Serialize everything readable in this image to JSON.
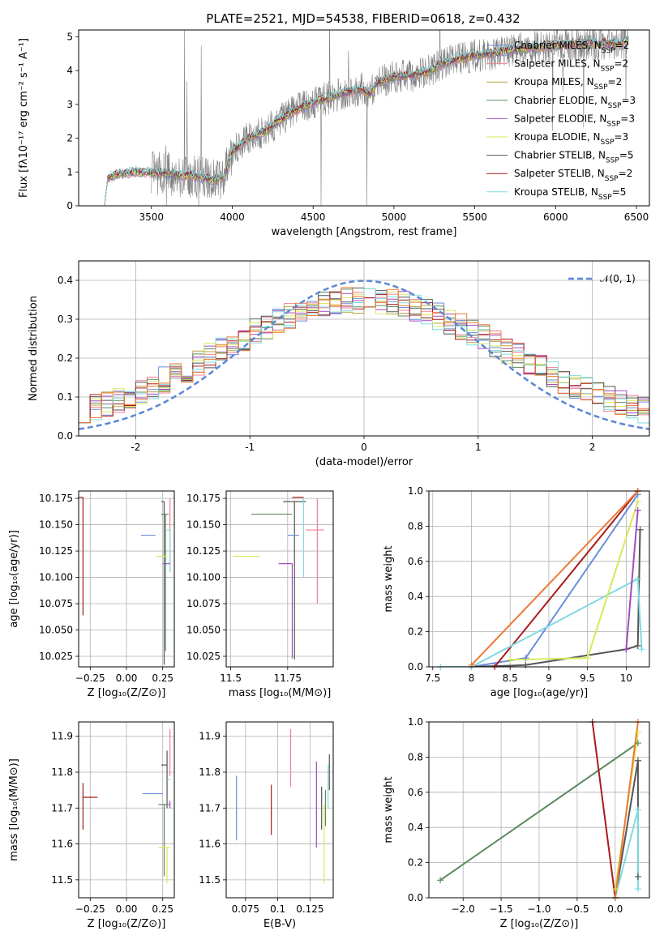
{
  "title": "PLATE=2521, MJD=54538, FIBERID=0618, z=0.432",
  "colors": {
    "Chabrier MILES": "#6b8fd8",
    "Salpeter MILES": "#f07f92",
    "Kroupa MILES": "#b5a442",
    "Chabrier ELODIE": "#5b8a5f",
    "Salpeter ELODIE": "#a24cc2",
    "Kroupa ELODIE": "#d9e85a",
    "Chabrier STELIB": "#555555",
    "Salpeter STELIB": "#a81c1c",
    "Kroupa STELIB": "#7fdbe0",
    "data": "#808080",
    "gauss": "#5b87d6",
    "orange": "#ed7a35"
  },
  "chart_data": [
    {
      "id": "spectrum",
      "type": "line",
      "xlabel": "wavelength [Angstrom, rest frame]",
      "ylabel": "Flux [fλ10⁻¹⁷ erg cm⁻² s⁻¹ A⁻¹]",
      "xlim": [
        3050,
        6580
      ],
      "ylim": [
        0,
        5.2
      ],
      "xticks": [
        3500,
        4000,
        4500,
        5000,
        5500,
        6000,
        6500
      ],
      "yticks": [
        0,
        1,
        2,
        3,
        4,
        5
      ],
      "grid": false,
      "legend_position": "right",
      "legend": [
        {
          "label": "Chabrier MILES, N_SSP=2",
          "series": "Chabrier MILES"
        },
        {
          "label": "Salpeter MILES, N_SSP=2",
          "series": "Salpeter MILES"
        },
        {
          "label": "Kroupa MILES, N_SSP=2",
          "series": "Kroupa MILES"
        },
        {
          "label": "Chabrier ELODIE, N_SSP=3",
          "series": "Chabrier ELODIE"
        },
        {
          "label": "Salpeter ELODIE, N_SSP=3",
          "series": "Salpeter ELODIE"
        },
        {
          "label": "Kroupa ELODIE, N_SSP=3",
          "series": "Kroupa ELODIE"
        },
        {
          "label": "Chabrier STELIB, N_SSP=5",
          "series": "Chabrier STELIB"
        },
        {
          "label": "Salpeter STELIB, N_SSP=2",
          "series": "Salpeter STELIB"
        },
        {
          "label": "Kroupa STELIB, N_SSP=5",
          "series": "Kroupa STELIB"
        }
      ],
      "model_continuum": {
        "x": [
          3210,
          3230,
          3300,
          3400,
          3500,
          3600,
          3700,
          3800,
          3900,
          3950,
          4000,
          4100,
          4200,
          4300,
          4400,
          4500,
          4600,
          4700,
          4800,
          4850,
          4900,
          5000,
          5100,
          5200,
          5300,
          5400,
          5500,
          5600,
          5700,
          5800,
          5900,
          6000,
          6100,
          6200,
          6300,
          6400,
          6450
        ],
        "y": [
          0,
          0.82,
          0.95,
          1.0,
          0.98,
          0.95,
          0.9,
          0.85,
          0.75,
          0.88,
          1.6,
          2.0,
          2.2,
          2.55,
          2.85,
          3.05,
          3.2,
          3.35,
          3.45,
          3.3,
          3.65,
          3.8,
          3.85,
          3.95,
          4.2,
          4.35,
          4.45,
          4.5,
          4.6,
          4.65,
          4.7,
          4.75,
          4.78,
          4.8,
          4.8,
          4.8,
          4.9
        ]
      },
      "data_spectrum_range": {
        "x": [
          3500,
          6450
        ],
        "noise_note": "noisy observed spectrum"
      }
    },
    {
      "id": "residual-hist",
      "type": "line",
      "xlabel": "(data-model)/error",
      "ylabel": "Normed distribution",
      "xlim": [
        -2.5,
        2.5
      ],
      "ylim": [
        0,
        0.45
      ],
      "xticks": [
        -2,
        -1,
        0,
        1,
        2
      ],
      "yticks": [
        0.0,
        0.1,
        0.2,
        0.3,
        0.4
      ],
      "grid": true,
      "legend": [
        {
          "label": "𝒩(0, 1)"
        }
      ],
      "legend_position": "top-right",
      "bins": [
        -2.5,
        2.5,
        50
      ]
    },
    {
      "id": "age-vs-Z",
      "type": "scatter",
      "xlabel": "Z [log₁₀(Z/Z⊙)]",
      "ylabel": "age  [log₁₀(age/yr)]",
      "xlim": [
        -0.33,
        0.33
      ],
      "ylim": [
        10.015,
        10.182
      ],
      "xticks": [
        -0.25,
        0.0,
        0.25
      ],
      "xticklabels": [
        "−0.25",
        "0.00",
        "0.25"
      ],
      "yticks": [
        10.025,
        10.05,
        10.075,
        10.1,
        10.125,
        10.15,
        10.175
      ],
      "grid": true,
      "points": [
        {
          "series": "Salpeter STELIB",
          "x": -0.3,
          "y": 10.176,
          "xerr": [
            0.3,
            0.0
          ],
          "yerr": [
            0.112,
            0.0
          ]
        },
        {
          "series": "Chabrier MILES",
          "x": 0.15,
          "y": 10.14,
          "xerr": [
            0.05,
            0.05
          ],
          "yerr": [
            0.0,
            0.0
          ]
        },
        {
          "series": "Chabrier STELIB",
          "x": 0.26,
          "y": 10.172,
          "xerr": [
            0.02,
            0.0
          ],
          "yerr": [
            0.155,
            0.0
          ]
        },
        {
          "series": "Chabrier ELODIE",
          "x": 0.27,
          "y": 10.16,
          "xerr": [
            0.03,
            0.02
          ],
          "yerr": [
            0.13,
            0.0
          ]
        },
        {
          "series": "Salpeter MILES",
          "x": 0.3,
          "y": 10.175,
          "xerr": [
            0.0,
            0.0
          ],
          "yerr": [
            0.07,
            0.0
          ]
        },
        {
          "series": "Kroupa ELODIE",
          "x": 0.23,
          "y": 10.12,
          "xerr": [
            0.03,
            0.05
          ],
          "yerr": [
            0.0,
            0.0
          ]
        },
        {
          "series": "Kroupa STELIB",
          "x": 0.3,
          "y": 10.145,
          "xerr": [
            0.02,
            0.0
          ],
          "yerr": [
            0.04,
            0.0
          ]
        },
        {
          "series": "Salpeter ELODIE",
          "x": 0.3,
          "y": 10.113,
          "xerr": [
            0.05,
            0.0
          ],
          "yerr": [
            0.0,
            0.0
          ]
        }
      ]
    },
    {
      "id": "age-vs-mass",
      "type": "scatter",
      "xlabel": "mass [log₁₀(M/M⊙)]",
      "ylabel": "",
      "xlim": [
        11.48,
        11.95
      ],
      "ylim": [
        10.015,
        10.182
      ],
      "xticks": [
        11.5,
        11.75
      ],
      "yticks": [
        10.025,
        10.05,
        10.075,
        10.1,
        10.125,
        10.15,
        10.175
      ],
      "grid": true,
      "points": [
        {
          "series": "Salpeter STELIB",
          "x": 11.77,
          "y": 10.176,
          "xerr": [
            0.0,
            0.05
          ],
          "yerr": [
            0.0,
            0.0
          ]
        },
        {
          "series": "Chabrier STELIB",
          "x": 11.78,
          "y": 10.172,
          "xerr": [
            0.05,
            0.05
          ],
          "yerr": [
            0.15,
            0.0
          ]
        },
        {
          "series": "Chabrier ELODIE",
          "x": 11.69,
          "y": 10.16,
          "xerr": [
            0.1,
            0.08
          ],
          "yerr": [
            0.0,
            0.0
          ]
        },
        {
          "series": "Chabrier MILES",
          "x": 11.8,
          "y": 10.14,
          "xerr": [
            0.05,
            0.0
          ],
          "yerr": [
            0.0,
            0.0
          ]
        },
        {
          "series": "Salpeter MILES",
          "x": 11.88,
          "y": 10.145,
          "xerr": [
            0.05,
            0.03
          ],
          "yerr": [
            0.07,
            0.03
          ]
        },
        {
          "series": "Kroupa ELODIE",
          "x": 11.58,
          "y": 10.12,
          "xerr": [
            0.07,
            0.05
          ],
          "yerr": [
            0.0,
            0.0
          ]
        },
        {
          "series": "Kroupa STELIB",
          "x": 11.82,
          "y": 10.13,
          "xerr": [
            0.0,
            0.0
          ],
          "yerr": [
            0.03,
            0.045
          ]
        },
        {
          "series": "Salpeter ELODIE",
          "x": 11.77,
          "y": 10.113,
          "xerr": [
            0.06,
            0.0
          ],
          "yerr": [
            0.09,
            0.0
          ]
        }
      ]
    },
    {
      "id": "age-weights",
      "type": "line",
      "xlabel": "age  [log₁₀(age/yr)]",
      "ylabel": "mass weight",
      "xlim": [
        7.45,
        10.3
      ],
      "ylim": [
        0,
        1.0
      ],
      "xticks": [
        7.5,
        8.0,
        8.5,
        9.0,
        9.5,
        10.0
      ],
      "yticks": [
        0.0,
        0.2,
        0.4,
        0.6,
        0.8,
        1.0
      ],
      "grid": true,
      "series": [
        {
          "name": "Chabrier MILES",
          "x": [
            8.0,
            8.7,
            10.15
          ],
          "y": [
            0.0,
            0.05,
            0.98
          ]
        },
        {
          "name": "Salpeter STELIB",
          "x": [
            8.3,
            10.15
          ],
          "y": [
            0.0,
            1.0
          ]
        },
        {
          "name": "Chabrier STELIB",
          "x": [
            8.0,
            8.7,
            10.0,
            10.15,
            10.18
          ],
          "y": [
            0.0,
            0.01,
            0.1,
            0.12,
            0.78
          ]
        },
        {
          "name": "Kroupa STELIB",
          "x": [
            7.6,
            8.0,
            10.15,
            10.2
          ],
          "y": [
            0.0,
            0.0,
            0.5,
            0.1
          ]
        },
        {
          "name": "Kroupa ELODIE",
          "x": [
            8.5,
            9.5,
            10.15
          ],
          "y": [
            0.04,
            0.05,
            0.94
          ]
        },
        {
          "name": "Salpeter ELODIE",
          "x": [
            10.0,
            10.15
          ],
          "y": [
            0.1,
            0.89
          ]
        },
        {
          "name": "orange",
          "x": [
            8.0,
            10.15
          ],
          "y": [
            0.01,
            1.0
          ]
        }
      ]
    },
    {
      "id": "mass-vs-Z",
      "type": "scatter",
      "xlabel": "Z [log₁₀(Z/Z⊙)]",
      "ylabel": "mass [log₁₀(M/M⊙)]",
      "xlim": [
        -0.33,
        0.33
      ],
      "ylim": [
        11.45,
        11.94
      ],
      "xticks": [
        -0.25,
        0.0,
        0.25
      ],
      "xticklabels": [
        "−0.25",
        "0.00",
        "0.25"
      ],
      "yticks": [
        11.5,
        11.6,
        11.7,
        11.8,
        11.9
      ],
      "grid": true,
      "points": [
        {
          "series": "Salpeter STELIB",
          "x": -0.3,
          "y": 11.73,
          "xerr": [
            0.0,
            0.1
          ],
          "yerr": [
            0.09,
            0.04
          ]
        },
        {
          "series": "Chabrier MILES",
          "x": 0.25,
          "y": 11.74,
          "xerr": [
            0.14,
            0.0
          ],
          "yerr": [
            0.0,
            0.0
          ]
        },
        {
          "series": "Chabrier STELIB",
          "x": 0.28,
          "y": 11.82,
          "xerr": [
            0.04,
            0.0
          ],
          "yerr": [
            0.12,
            0.04
          ]
        },
        {
          "series": "Chabrier ELODIE",
          "x": 0.26,
          "y": 11.71,
          "xerr": [
            0.04,
            0.04
          ],
          "yerr": [
            0.2,
            0.0
          ]
        },
        {
          "series": "Salpeter MILES",
          "x": 0.3,
          "y": 11.88,
          "xerr": [
            0.0,
            0.0
          ],
          "yerr": [
            0.09,
            0.04
          ]
        },
        {
          "series": "Kroupa ELODIE",
          "x": 0.28,
          "y": 11.59,
          "xerr": [
            0.06,
            0.02
          ],
          "yerr": [
            0.1,
            0.0
          ]
        },
        {
          "series": "Kroupa STELIB",
          "x": 0.3,
          "y": 11.78,
          "xerr": [
            0.02,
            0.0
          ],
          "yerr": [
            0.0,
            0.0
          ]
        },
        {
          "series": "Salpeter ELODIE",
          "x": 0.3,
          "y": 11.72,
          "xerr": [
            0.0,
            0.0
          ],
          "yerr": [
            0.02,
            0.0
          ]
        }
      ]
    },
    {
      "id": "mass-vs-EBV",
      "type": "scatter",
      "xlabel": "E(B-V)",
      "ylabel": "",
      "xlim": [
        0.06,
        0.143
      ],
      "ylim": [
        11.45,
        11.94
      ],
      "xticks": [
        0.075,
        0.1,
        0.125
      ],
      "yticks": [
        11.5,
        11.6,
        11.7,
        11.8,
        11.9
      ],
      "grid": true,
      "points": [
        {
          "series": "Chabrier MILES",
          "x": 0.068,
          "y": 11.7,
          "yerr": [
            0.09,
            0.09
          ]
        },
        {
          "series": "Salpeter STELIB",
          "x": 0.095,
          "y": 11.695,
          "yerr": [
            0.07,
            0.07
          ]
        },
        {
          "series": "Salpeter MILES",
          "x": 0.11,
          "y": 11.84,
          "yerr": [
            0.08,
            0.08
          ]
        },
        {
          "series": "Salpeter ELODIE",
          "x": 0.13,
          "y": 11.71,
          "yerr": [
            0.12,
            0.12
          ]
        },
        {
          "series": "Chabrier STELIB",
          "x": 0.134,
          "y": 11.7,
          "yerr": [
            0.06,
            0.06
          ]
        },
        {
          "series": "Kroupa ELODIE",
          "x": 0.136,
          "y": 11.6,
          "yerr": [
            0.11,
            0.11
          ]
        },
        {
          "series": "Chabrier ELODIE",
          "x": 0.137,
          "y": 11.7,
          "yerr": [
            0.05,
            0.05
          ]
        },
        {
          "series": "Kroupa STELIB",
          "x": 0.139,
          "y": 11.76,
          "yerr": [
            0.06,
            0.06
          ]
        },
        {
          "series": "Chabrier STELIB",
          "x": 0.14,
          "y": 11.8,
          "yerr": [
            0.05,
            0.05
          ]
        }
      ]
    },
    {
      "id": "Z-weights",
      "type": "line",
      "xlabel": "Z [log₁₀(Z/Z⊙)]",
      "ylabel": "mass weight",
      "xlim": [
        -2.45,
        0.45
      ],
      "ylim": [
        0,
        1.0
      ],
      "xticks": [
        -2.0,
        -1.5,
        -1.0,
        -0.5,
        0.0
      ],
      "xticklabels": [
        "−2.0",
        "−1.5",
        "−1.0",
        "−0.5",
        "0.0"
      ],
      "yticks": [
        0.0,
        0.2,
        0.4,
        0.6,
        0.8,
        1.0
      ],
      "grid": true,
      "series": [
        {
          "name": "Chabrier ELODIE",
          "x": [
            -2.3,
            0.3
          ],
          "y": [
            0.1,
            0.88
          ]
        },
        {
          "name": "Salpeter STELIB",
          "x": [
            -0.3,
            0.0
          ],
          "y": [
            1.0,
            0.0
          ]
        },
        {
          "name": "Chabrier STELIB",
          "x": [
            0.0,
            0.3,
            0.3
          ],
          "y": [
            0.0,
            0.78,
            0.12
          ]
        },
        {
          "name": "Kroupa STELIB",
          "x": [
            0.0,
            0.3,
            0.3
          ],
          "y": [
            0.0,
            0.5,
            0.05
          ]
        },
        {
          "name": "Kroupa ELODIE",
          "x": [
            0.0,
            0.3
          ],
          "y": [
            0.05,
            0.94
          ]
        },
        {
          "name": "orange",
          "x": [
            0.0,
            0.3
          ],
          "y": [
            0.0,
            1.0
          ]
        }
      ]
    }
  ]
}
